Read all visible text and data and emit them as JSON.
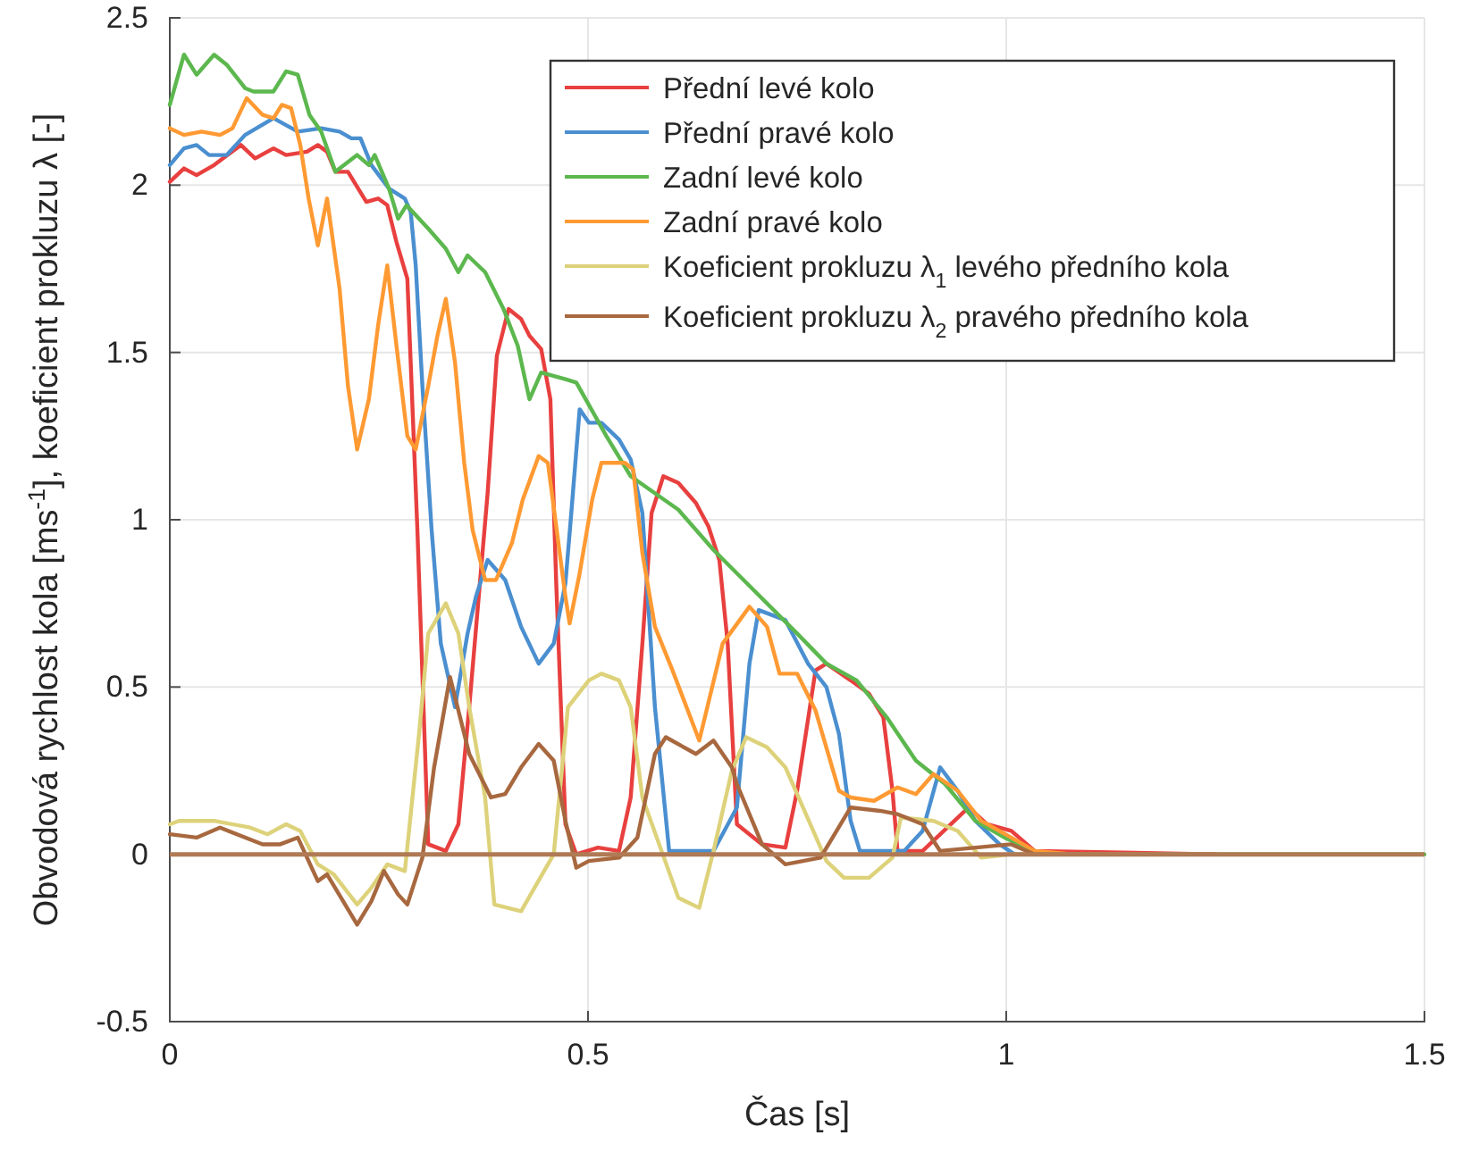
{
  "chart_data": {
    "type": "line",
    "xlabel": "Čas [s]",
    "ylabel": "Obvodová rychlost kola [ms$^{-1}$], koeficient prokluzu λ [-]",
    "xlim": [
      0,
      1.5
    ],
    "ylim": [
      -0.5,
      2.5
    ],
    "xticks": [
      0,
      0.5,
      1,
      1.5
    ],
    "yticks": [
      -0.5,
      0,
      0.5,
      1,
      1.5,
      2,
      2.5
    ],
    "grid": true,
    "legend": "top right",
    "line_style": "solid",
    "marker": "none",
    "ref_lines": [
      {
        "axis": "y",
        "value": 0,
        "color": "#b07a55"
      }
    ],
    "series": [
      {
        "name": "Přední levé kolo",
        "color": "#e8403f",
        "x": [
          0,
          0.017,
          0.032,
          0.053,
          0.085,
          0.102,
          0.124,
          0.139,
          0.164,
          0.177,
          0.188,
          0.198,
          0.213,
          0.235,
          0.249,
          0.26,
          0.271,
          0.284,
          0.292,
          0.296,
          0.309,
          0.33,
          0.345,
          0.358,
          0.38,
          0.391,
          0.405,
          0.42,
          0.43,
          0.444,
          0.455,
          0.462,
          0.473,
          0.486,
          0.512,
          0.537,
          0.551,
          0.565,
          0.576,
          0.59,
          0.608,
          0.629,
          0.644,
          0.657,
          0.667,
          0.678,
          0.708,
          0.736,
          0.75,
          0.772,
          0.785,
          0.814,
          0.836,
          0.853,
          0.864,
          0.87,
          0.9,
          0.955,
          0.977,
          1.006,
          1.034,
          1.25
        ],
        "values": [
          2.01,
          2.05,
          2.03,
          2.06,
          2.12,
          2.08,
          2.11,
          2.09,
          2.1,
          2.12,
          2.1,
          2.04,
          2.04,
          1.95,
          1.96,
          1.94,
          1.83,
          1.72,
          1.22,
          0.97,
          0.03,
          0.01,
          0.09,
          0.44,
          1.08,
          1.49,
          1.63,
          1.6,
          1.55,
          1.51,
          1.36,
          0.81,
          0.09,
          0,
          0.02,
          0.01,
          0.17,
          0.63,
          1.02,
          1.13,
          1.11,
          1.05,
          0.98,
          0.88,
          0.63,
          0.09,
          0.03,
          0.02,
          0.19,
          0.55,
          0.57,
          0.52,
          0.48,
          0.41,
          0.19,
          0.01,
          0.01,
          0.14,
          0.09,
          0.07,
          0.01,
          0
        ]
      },
      {
        "name": "Přední pravé kolo",
        "color": "#4a8fd0",
        "x": [
          0,
          0.017,
          0.032,
          0.047,
          0.068,
          0.09,
          0.124,
          0.153,
          0.181,
          0.203,
          0.217,
          0.228,
          0.241,
          0.262,
          0.281,
          0.288,
          0.294,
          0.302,
          0.313,
          0.324,
          0.341,
          0.356,
          0.366,
          0.38,
          0.401,
          0.42,
          0.441,
          0.459,
          0.473,
          0.48,
          0.49,
          0.501,
          0.516,
          0.537,
          0.551,
          0.565,
          0.58,
          0.597,
          0.65,
          0.678,
          0.693,
          0.704,
          0.736,
          0.763,
          0.785,
          0.8,
          0.814,
          0.825,
          0.878,
          0.9,
          0.921,
          0.942,
          0.963,
          0.992,
          1.01,
          1.25
        ],
        "values": [
          2.06,
          2.11,
          2.12,
          2.09,
          2.09,
          2.15,
          2.2,
          2.16,
          2.17,
          2.16,
          2.14,
          2.14,
          2.06,
          1.99,
          1.96,
          1.92,
          1.76,
          1.4,
          0.97,
          0.63,
          0.44,
          0.66,
          0.77,
          0.88,
          0.82,
          0.68,
          0.57,
          0.63,
          0.81,
          1.02,
          1.33,
          1.29,
          1.29,
          1.24,
          1.18,
          1.02,
          0.44,
          0.01,
          0.01,
          0.14,
          0.57,
          0.73,
          0.7,
          0.57,
          0.5,
          0.36,
          0.1,
          0.01,
          0.01,
          0.07,
          0.26,
          0.19,
          0.1,
          0.03,
          0,
          0
        ]
      },
      {
        "name": "Zadní levé kolo",
        "color": "#5cb84e",
        "x": [
          0,
          0.017,
          0.032,
          0.053,
          0.068,
          0.09,
          0.1,
          0.124,
          0.139,
          0.153,
          0.167,
          0.181,
          0.198,
          0.224,
          0.238,
          0.245,
          0.262,
          0.273,
          0.283,
          0.309,
          0.33,
          0.345,
          0.356,
          0.377,
          0.399,
          0.416,
          0.43,
          0.444,
          0.473,
          0.486,
          0.522,
          0.551,
          0.608,
          0.65,
          0.678,
          0.75,
          0.785,
          0.821,
          0.857,
          0.892,
          0.927,
          0.963,
          0.998,
          1.034,
          1.05,
          1.5
        ],
        "values": [
          2.24,
          2.39,
          2.33,
          2.39,
          2.36,
          2.29,
          2.28,
          2.28,
          2.34,
          2.33,
          2.21,
          2.16,
          2.04,
          2.09,
          2.06,
          2.09,
          1.99,
          1.9,
          1.94,
          1.87,
          1.81,
          1.74,
          1.79,
          1.74,
          1.63,
          1.52,
          1.36,
          1.44,
          1.42,
          1.41,
          1.25,
          1.13,
          1.03,
          0.91,
          0.84,
          0.66,
          0.57,
          0.52,
          0.41,
          0.28,
          0.21,
          0.1,
          0.05,
          0.01,
          0,
          0
        ]
      },
      {
        "name": "Zadní pravé kolo",
        "color": "#ff9a33",
        "x": [
          0,
          0.017,
          0.038,
          0.06,
          0.075,
          0.092,
          0.111,
          0.124,
          0.134,
          0.145,
          0.156,
          0.166,
          0.177,
          0.188,
          0.203,
          0.213,
          0.224,
          0.238,
          0.249,
          0.26,
          0.271,
          0.284,
          0.294,
          0.309,
          0.32,
          0.33,
          0.341,
          0.352,
          0.362,
          0.377,
          0.39,
          0.409,
          0.422,
          0.441,
          0.452,
          0.462,
          0.473,
          0.478,
          0.49,
          0.505,
          0.516,
          0.544,
          0.554,
          0.565,
          0.58,
          0.601,
          0.633,
          0.661,
          0.693,
          0.714,
          0.729,
          0.75,
          0.772,
          0.8,
          0.814,
          0.842,
          0.87,
          0.892,
          0.913,
          0.942,
          0.97,
          1.006,
          1.034,
          1.08
        ],
        "values": [
          2.17,
          2.15,
          2.16,
          2.15,
          2.17,
          2.26,
          2.21,
          2.2,
          2.24,
          2.23,
          2.12,
          1.96,
          1.82,
          1.96,
          1.69,
          1.4,
          1.21,
          1.36,
          1.58,
          1.76,
          1.52,
          1.25,
          1.21,
          1.4,
          1.55,
          1.66,
          1.47,
          1.17,
          0.97,
          0.82,
          0.82,
          0.93,
          1.06,
          1.19,
          1.17,
          0.98,
          0.77,
          0.69,
          0.84,
          1.06,
          1.17,
          1.17,
          1.15,
          0.9,
          0.68,
          0.55,
          0.34,
          0.63,
          0.74,
          0.68,
          0.54,
          0.54,
          0.43,
          0.19,
          0.17,
          0.16,
          0.2,
          0.18,
          0.24,
          0.19,
          0.1,
          0.05,
          0.01,
          0
        ]
      },
      {
        "name": "Koeficient prokluzu λ$_{1}$ levého předního kola",
        "color": "#ddd27a",
        "x": [
          0,
          0.011,
          0.053,
          0.096,
          0.117,
          0.139,
          0.156,
          0.177,
          0.196,
          0.224,
          0.241,
          0.26,
          0.281,
          0.298,
          0.309,
          0.33,
          0.345,
          0.358,
          0.377,
          0.388,
          0.42,
          0.459,
          0.476,
          0.501,
          0.516,
          0.537,
          0.551,
          0.565,
          0.608,
          0.633,
          0.65,
          0.672,
          0.689,
          0.714,
          0.736,
          0.757,
          0.785,
          0.806,
          0.836,
          0.864,
          0.874,
          0.913,
          0.942,
          0.97,
          1.006,
          1.25
        ],
        "values": [
          0.09,
          0.1,
          0.1,
          0.08,
          0.06,
          0.09,
          0.07,
          -0.03,
          -0.06,
          -0.15,
          -0.1,
          -0.03,
          -0.05,
          0.36,
          0.66,
          0.75,
          0.66,
          0.44,
          0.17,
          -0.15,
          -0.17,
          0,
          0.44,
          0.52,
          0.54,
          0.52,
          0.44,
          0.17,
          -0.13,
          -0.16,
          0.01,
          0.25,
          0.35,
          0.32,
          0.26,
          0.14,
          -0.02,
          -0.07,
          -0.07,
          -0.01,
          0.11,
          0.1,
          0.07,
          -0.01,
          0,
          0
        ]
      },
      {
        "name": "Koeficient prokluzu λ$_{2}$ pravého předního kola",
        "color": "#a8683f",
        "x": [
          0,
          0.032,
          0.06,
          0.111,
          0.132,
          0.153,
          0.177,
          0.188,
          0.224,
          0.241,
          0.256,
          0.273,
          0.284,
          0.302,
          0.316,
          0.335,
          0.358,
          0.384,
          0.401,
          0.42,
          0.441,
          0.459,
          0.473,
          0.486,
          0.501,
          0.537,
          0.559,
          0.58,
          0.593,
          0.629,
          0.65,
          0.672,
          0.678,
          0.708,
          0.736,
          0.778,
          0.814,
          0.849,
          0.87,
          0.9,
          0.921,
          1.006,
          1.034,
          1.25
        ],
        "values": [
          0.06,
          0.05,
          0.08,
          0.03,
          0.03,
          0.05,
          -0.08,
          -0.06,
          -0.21,
          -0.14,
          -0.05,
          -0.12,
          -0.15,
          -0.01,
          0.26,
          0.53,
          0.3,
          0.17,
          0.18,
          0.26,
          0.33,
          0.28,
          0.1,
          -0.04,
          -0.02,
          -0.01,
          0.05,
          0.3,
          0.35,
          0.3,
          0.34,
          0.26,
          0.21,
          0.03,
          -0.03,
          -0.01,
          0.14,
          0.13,
          0.12,
          0.09,
          0.01,
          0.03,
          0,
          0
        ]
      }
    ]
  }
}
